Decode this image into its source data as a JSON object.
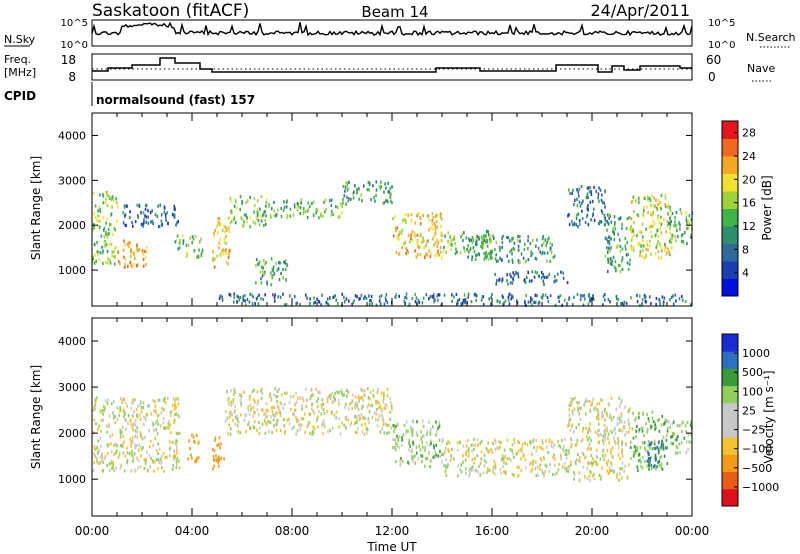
{
  "header": {
    "station": "Saskatoon (fitACF)",
    "beam": "Beam 14",
    "date": "24/Apr/2011"
  },
  "left_labels": {
    "nsky": "N.Sky",
    "freq_top": "Freq.",
    "freq_bottom": "[MHz]",
    "cpid": "CPID"
  },
  "right_labels": {
    "nsearch": "N.Search",
    "nave": "Nave"
  },
  "noise_panel": {
    "ytick_top": "10^5",
    "ytick_bottom": "10^0",
    "rtick_top": "10^5",
    "rtick_bottom": "10^0"
  },
  "freq_panel": {
    "ytick_top": "18",
    "ytick_bottom": "8",
    "rtick_top": "60",
    "rtick_bottom": "0"
  },
  "cpid_text": "normalsound (fast) 157",
  "colors": {
    "power_scale": [
      "#0010e0",
      "#1d3db5",
      "#2e6a9a",
      "#2e8f6c",
      "#3fb34a",
      "#9ed23a",
      "#f0e030",
      "#f5a623",
      "#ef6a1e",
      "#e6171a"
    ],
    "velocity_scale": [
      "#e0101a",
      "#ea5a18",
      "#f59a16",
      "#f2c230",
      "#c8c8c8",
      "#c8c8c8",
      "#8fcf5a",
      "#3a9a3a",
      "#2e6fbf",
      "#1a2bd6"
    ]
  },
  "chart_data": [
    {
      "type": "heatmap",
      "title": "",
      "xlabel": "",
      "ylabel": "Slant Range [km]",
      "x_ticks": [
        "00:00",
        "04:00",
        "08:00",
        "12:00",
        "16:00",
        "20:00",
        "00:00"
      ],
      "y_ticks": [
        1000,
        2000,
        3000,
        4000
      ],
      "ylim": [
        200,
        4500
      ],
      "xlim_hours": [
        0,
        24
      ],
      "colorbar_label": "Power [dB]",
      "colorbar_ticks": [
        4,
        8,
        12,
        16,
        20,
        24,
        28
      ],
      "colorbar_range": [
        0,
        30
      ],
      "scatter_bands": [
        {
          "t0": 0.0,
          "t1": 1.0,
          "r0": 1150,
          "r1": 2800,
          "power": 16
        },
        {
          "t0": 1.0,
          "t1": 2.2,
          "r0": 1100,
          "r1": 1700,
          "power": 22
        },
        {
          "t0": 1.2,
          "t1": 3.5,
          "r0": 2000,
          "r1": 2500,
          "power": 8
        },
        {
          "t0": 3.3,
          "t1": 4.4,
          "r0": 1300,
          "r1": 1800,
          "power": 14
        },
        {
          "t0": 4.8,
          "t1": 5.5,
          "r0": 1100,
          "r1": 2200,
          "power": 20
        },
        {
          "t0": 5.5,
          "t1": 7.0,
          "r0": 2000,
          "r1": 2700,
          "power": 14
        },
        {
          "t0": 6.5,
          "t1": 7.8,
          "r0": 700,
          "r1": 1300,
          "power": 12
        },
        {
          "t0": 7.0,
          "t1": 10.0,
          "r0": 2200,
          "r1": 2600,
          "power": 14
        },
        {
          "t0": 10.0,
          "t1": 12.0,
          "r0": 2500,
          "r1": 3000,
          "power": 12
        },
        {
          "t0": 12.0,
          "t1": 14.0,
          "r0": 1300,
          "r1": 2300,
          "power": 20
        },
        {
          "t0": 14.0,
          "t1": 16.0,
          "r0": 1400,
          "r1": 1900,
          "power": 14
        },
        {
          "t0": 15.0,
          "t1": 18.5,
          "r0": 1200,
          "r1": 1800,
          "power": 12
        },
        {
          "t0": 16.0,
          "t1": 19.0,
          "r0": 700,
          "r1": 1000,
          "power": 8
        },
        {
          "t0": 19.0,
          "t1": 20.5,
          "r0": 2000,
          "r1": 2900,
          "power": 8
        },
        {
          "t0": 20.5,
          "t1": 21.5,
          "r0": 1000,
          "r1": 2300,
          "power": 12
        },
        {
          "t0": 21.5,
          "t1": 23.2,
          "r0": 1300,
          "r1": 2700,
          "power": 18
        },
        {
          "t0": 23.0,
          "t1": 24.0,
          "r0": 1600,
          "r1": 2400,
          "power": 14
        },
        {
          "t0": 5.0,
          "t1": 24.0,
          "r0": 250,
          "r1": 500,
          "power": 8
        }
      ]
    },
    {
      "type": "heatmap",
      "title": "",
      "xlabel": "Time UT",
      "ylabel": "Slant Range [km]",
      "x_ticks": [
        "00:00",
        "04:00",
        "08:00",
        "12:00",
        "16:00",
        "20:00",
        "00:00"
      ],
      "y_ticks": [
        1000,
        2000,
        3000,
        4000
      ],
      "ylim": [
        200,
        4500
      ],
      "xlim_hours": [
        0,
        24
      ],
      "colorbar_label": "Velocity [m s⁻¹]",
      "colorbar_ticks": [
        "1000",
        "500",
        "100",
        "25",
        "−25",
        "−100",
        "−500",
        "−1000"
      ],
      "scatter_bands": [
        {
          "t0": 0.0,
          "t1": 3.5,
          "r0": 1200,
          "r1": 2800,
          "velocity": 0
        },
        {
          "t0": 3.8,
          "t1": 4.3,
          "r0": 1400,
          "r1": 2000,
          "velocity": -300
        },
        {
          "t0": 4.8,
          "t1": 5.3,
          "r0": 1200,
          "r1": 2000,
          "velocity": -200
        },
        {
          "t0": 5.3,
          "t1": 12.0,
          "r0": 2000,
          "r1": 3000,
          "velocity": 0
        },
        {
          "t0": 12.0,
          "t1": 14.0,
          "r0": 1300,
          "r1": 2300,
          "velocity": 50
        },
        {
          "t0": 14.0,
          "t1": 19.0,
          "r0": 1100,
          "r1": 1900,
          "velocity": 0
        },
        {
          "t0": 19.0,
          "t1": 21.5,
          "r0": 1000,
          "r1": 2800,
          "velocity": 0
        },
        {
          "t0": 21.5,
          "t1": 23.0,
          "r0": 1200,
          "r1": 2500,
          "velocity": 100
        },
        {
          "t0": 22.2,
          "t1": 22.9,
          "r0": 1300,
          "r1": 1900,
          "velocity": 800
        },
        {
          "t0": 23.0,
          "t1": 24.0,
          "r0": 1600,
          "r1": 2300,
          "velocity": 50
        }
      ]
    }
  ]
}
